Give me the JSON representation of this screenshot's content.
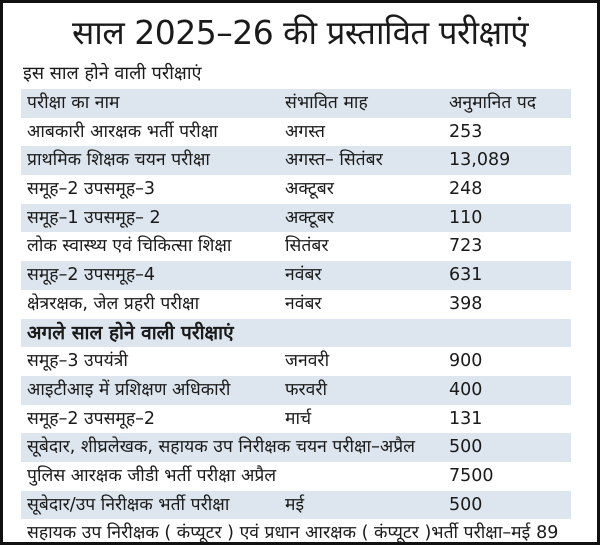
{
  "title": "साल 2025–26 की प्रस्तावित परीक्षाएं",
  "subtitle": "इस साल होने वाली परीक्षाएं",
  "headers": {
    "name": "परीक्षा का नाम",
    "month": "संभावित माह",
    "posts": "अनुमानित पद"
  },
  "this_year": [
    {
      "name": "आबकारी आरक्षक भर्ती परीक्षा",
      "month": "अगस्त",
      "posts": "253"
    },
    {
      "name": "प्राथमिक शिक्षक चयन परीक्षा",
      "month": "अगस्त– सितंबर",
      "posts": "13,089"
    },
    {
      "name": "समूह–2 उपसमूह–3",
      "month": "अक्टूबर",
      "posts": "248"
    },
    {
      "name": "समूह–1 उपसमूह– 2",
      "month": "अक्टूबर",
      "posts": "110"
    },
    {
      "name": "लोक स्वास्थ्य एवं चिकित्सा शिक्षा",
      "month": "सितंबर",
      "posts": "723"
    },
    {
      "name": "समूह–2 उपसमूह–4",
      "month": "नवंबर",
      "posts": "631"
    },
    {
      "name": "क्षेत्ररक्षक, जेल प्रहरी परीक्षा",
      "month": "नवंबर",
      "posts": "398"
    }
  ],
  "next_year_heading": "अगले साल होने वाली परीक्षाएं",
  "next_year": [
    {
      "name": "समूह–3 उपयंत्री",
      "month": "जनवरी",
      "posts": "900"
    },
    {
      "name": "आइटीआइ में प्रशिक्षण अधिकारी",
      "month": "फरवरी",
      "posts": "400"
    },
    {
      "name": "समूह–2 उपसमूह–2",
      "month": "मार्च",
      "posts": "131"
    },
    {
      "name": "सूबेदार, शीघ्रलेखक, सहायक उप निरीक्षक चयन परीक्षा–अप्रैल",
      "posts": "500"
    },
    {
      "name": "पुलिस आरक्षक जीडी भर्ती परीक्षा अप्रैल",
      "posts": "7500"
    },
    {
      "name": "सूबेदार/उप निरीक्षक भर्ती परीक्षा",
      "month": "मई",
      "posts": "500"
    },
    {
      "name": "सहायक उप निरीक्षक ( कंप्यूटर ) एवं प्रधान आरक्षक ( कंप्यूटर )भर्ती परीक्षा–मई",
      "posts": "89"
    }
  ],
  "colors": {
    "stripe": "#dde6ee",
    "border": "#111111"
  }
}
